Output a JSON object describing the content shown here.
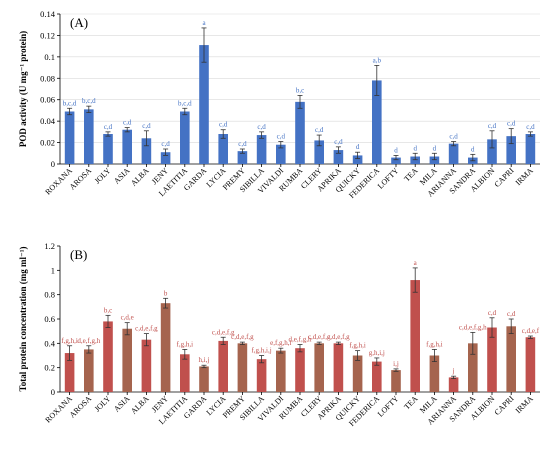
{
  "chart_data": [
    {
      "type": "bar",
      "panel_label": "(A)",
      "ylabel": "POD activity (U mg⁻¹ protein)",
      "ylim": [
        0,
        0.14
      ],
      "yticks": [
        "0",
        "0.02",
        "0.04",
        "0.06",
        "0.08",
        "0.1",
        "0.12",
        "0.14"
      ],
      "grid": true,
      "bar_color": "#4472c4",
      "letter_color": "#4472c4",
      "categories": [
        "ROXANA",
        "AROSA",
        "JOLY",
        "ASIA",
        "ALBA",
        "JENY",
        "LAETITIA",
        "GARDA",
        "LYCIA",
        "PREMY",
        "SIBILLA",
        "VIVALDI",
        "RUMBA",
        "CLERY",
        "APRIKA",
        "QUICKY",
        "FEDERICA",
        "LOFTY",
        "TEA",
        "MILA",
        "ARIANNA",
        "SANDRA",
        "ALBION",
        "CAPRI",
        "IRMA"
      ],
      "values": [
        0.049,
        0.051,
        0.028,
        0.032,
        0.024,
        0.011,
        0.049,
        0.111,
        0.028,
        0.012,
        0.027,
        0.018,
        0.058,
        0.022,
        0.013,
        0.008,
        0.078,
        0.006,
        0.007,
        0.007,
        0.019,
        0.006,
        0.023,
        0.026,
        0.028
      ],
      "errors": [
        0.003,
        0.003,
        0.002,
        0.002,
        0.007,
        0.003,
        0.003,
        0.016,
        0.004,
        0.002,
        0.003,
        0.003,
        0.006,
        0.005,
        0.003,
        0.003,
        0.014,
        0.002,
        0.003,
        0.003,
        0.002,
        0.003,
        0.008,
        0.007,
        0.002
      ],
      "letters": [
        "b,c,d",
        "b,c,d",
        "c,d",
        "c,d",
        "c,d",
        "c,d",
        "b,c,d",
        "a",
        "c,d",
        "c,d",
        "c,d",
        "c,d",
        "b,c",
        "c,d",
        "c,d",
        "d",
        "a,b",
        "d",
        "d",
        "d",
        "c,d",
        "d",
        "c,d",
        "c,d",
        "c,d"
      ]
    },
    {
      "type": "bar",
      "panel_label": "(B)",
      "ylabel": "Total protein concentration (mg ml⁻¹)",
      "ylim": [
        0,
        1.2
      ],
      "yticks": [
        "0",
        "0.2",
        "0.4",
        "0.6",
        "0.8",
        "1",
        "1.2"
      ],
      "grid": false,
      "bar_color": "#c0504d",
      "bar_color_alt": "#a5644e",
      "letter_color": "#c0504d",
      "categories": [
        "ROXANA",
        "AROSA",
        "JOLY",
        "ASIA",
        "ALBA",
        "JENY",
        "LAETITIA",
        "GARDA",
        "LYCIA",
        "PREMY",
        "SIBILLA",
        "VIVALDI",
        "RUMBA",
        "CLERY",
        "APRIKA",
        "QUICKY",
        "FEDERICA",
        "LOFTY",
        "TEA",
        "MILA",
        "ARIANNA",
        "SANDRA",
        "ALBION",
        "CAPRI",
        "IRMA"
      ],
      "values": [
        0.32,
        0.35,
        0.58,
        0.52,
        0.43,
        0.73,
        0.31,
        0.21,
        0.42,
        0.4,
        0.27,
        0.34,
        0.36,
        0.4,
        0.4,
        0.3,
        0.25,
        0.18,
        0.92,
        0.3,
        0.12,
        0.4,
        0.53,
        0.54,
        0.45
      ],
      "errors": [
        0.06,
        0.03,
        0.05,
        0.05,
        0.05,
        0.04,
        0.04,
        0.01,
        0.03,
        0.01,
        0.03,
        0.02,
        0.03,
        0.01,
        0.01,
        0.04,
        0.03,
        0.01,
        0.1,
        0.05,
        0.01,
        0.09,
        0.08,
        0.06,
        0.01
      ],
      "letters": [
        "f,g,h,i",
        "d,e,f,g,h",
        "b,c",
        "c,d,e",
        "c,d,e,f,g",
        "b",
        "f,g,h,i",
        "h,i,j",
        "c,d,e,f,g",
        "c,d,e,f,g",
        "f,g,h,i,j",
        "e,f,g,h,i",
        "d,e,f,g,h",
        "c,d,e,f,g",
        "c,d,e,f,g",
        "f,g,h,i",
        "g,h,i,j",
        "i,j",
        "a",
        "f,g,h,i",
        "j",
        "c,d,e,f,g,h",
        "c,d",
        "c,d",
        "c,d,e,f"
      ]
    }
  ]
}
